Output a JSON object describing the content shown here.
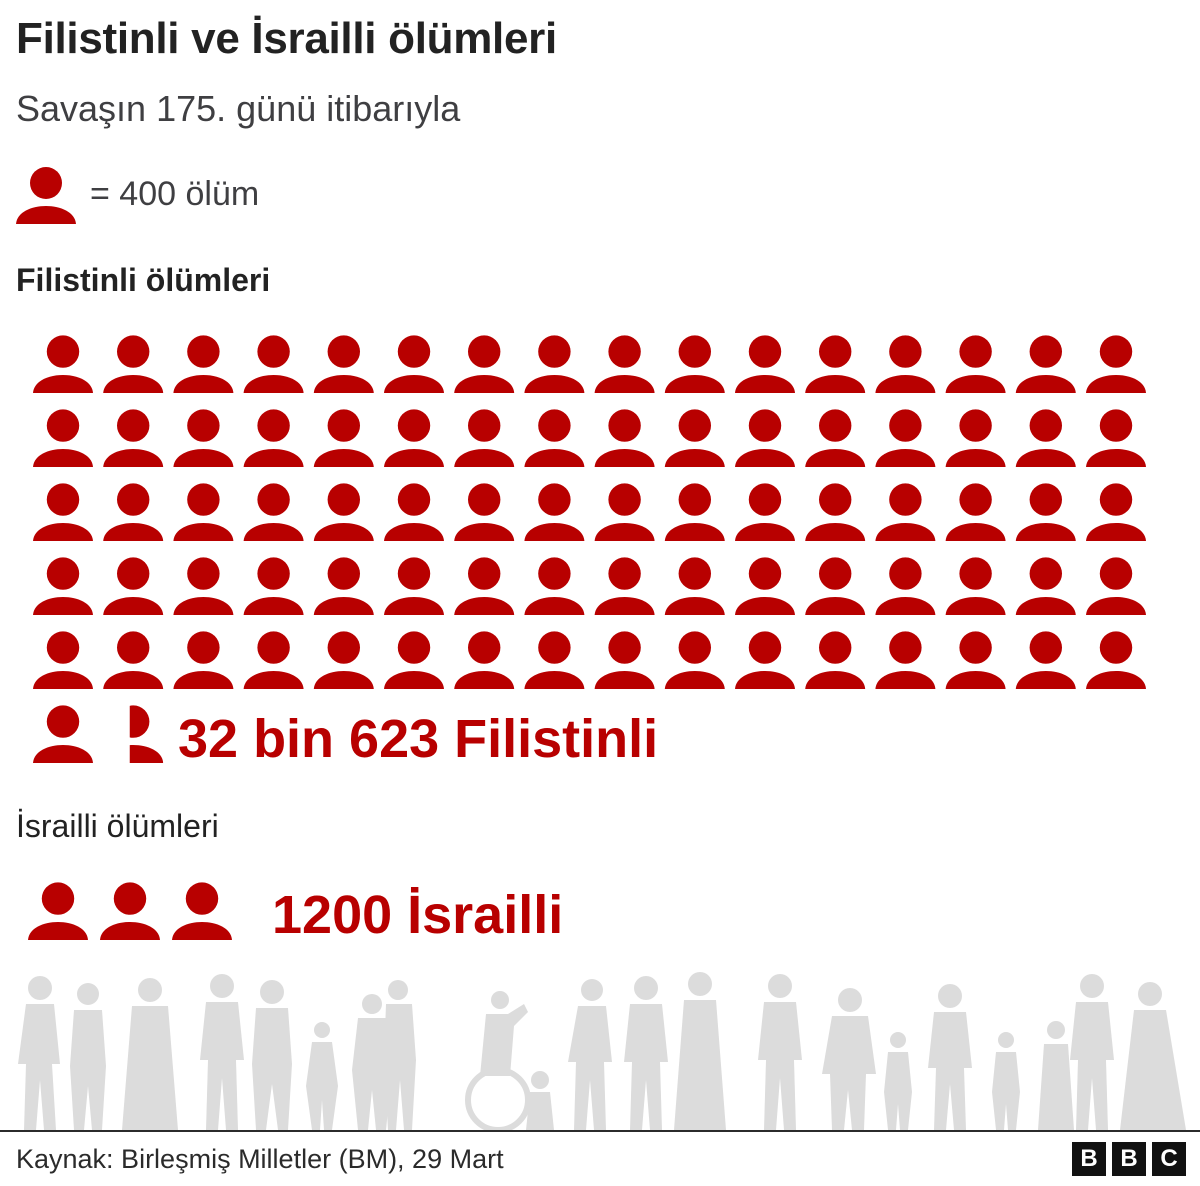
{
  "title": "Filistinli ve İsrailli ölümleri",
  "subtitle": "Savaşın 175. günü itibarıyla",
  "legend": {
    "text": "= 400 ölüm",
    "icon": "person-icon"
  },
  "palestinian": {
    "label": "Filistinli ölümleri",
    "total_label": "32 bin 623 Filistinli"
  },
  "israeli": {
    "label": "İsrailli ölümleri",
    "total_label": "1200 İsrailli"
  },
  "source": "Kaynak: Birleşmiş Milletler (BM), 29 Mart",
  "brand": {
    "letters": [
      "B",
      "B",
      "C"
    ]
  },
  "colors": {
    "accent": "#b80000",
    "silhouette": "#dcdcdc",
    "text": "#222222"
  },
  "chart_data": {
    "type": "pictogram",
    "unit": "400 ölüm",
    "series": [
      {
        "name": "Filistinli",
        "value": 32623
      },
      {
        "name": "İsrailli",
        "value": 1200
      }
    ]
  }
}
